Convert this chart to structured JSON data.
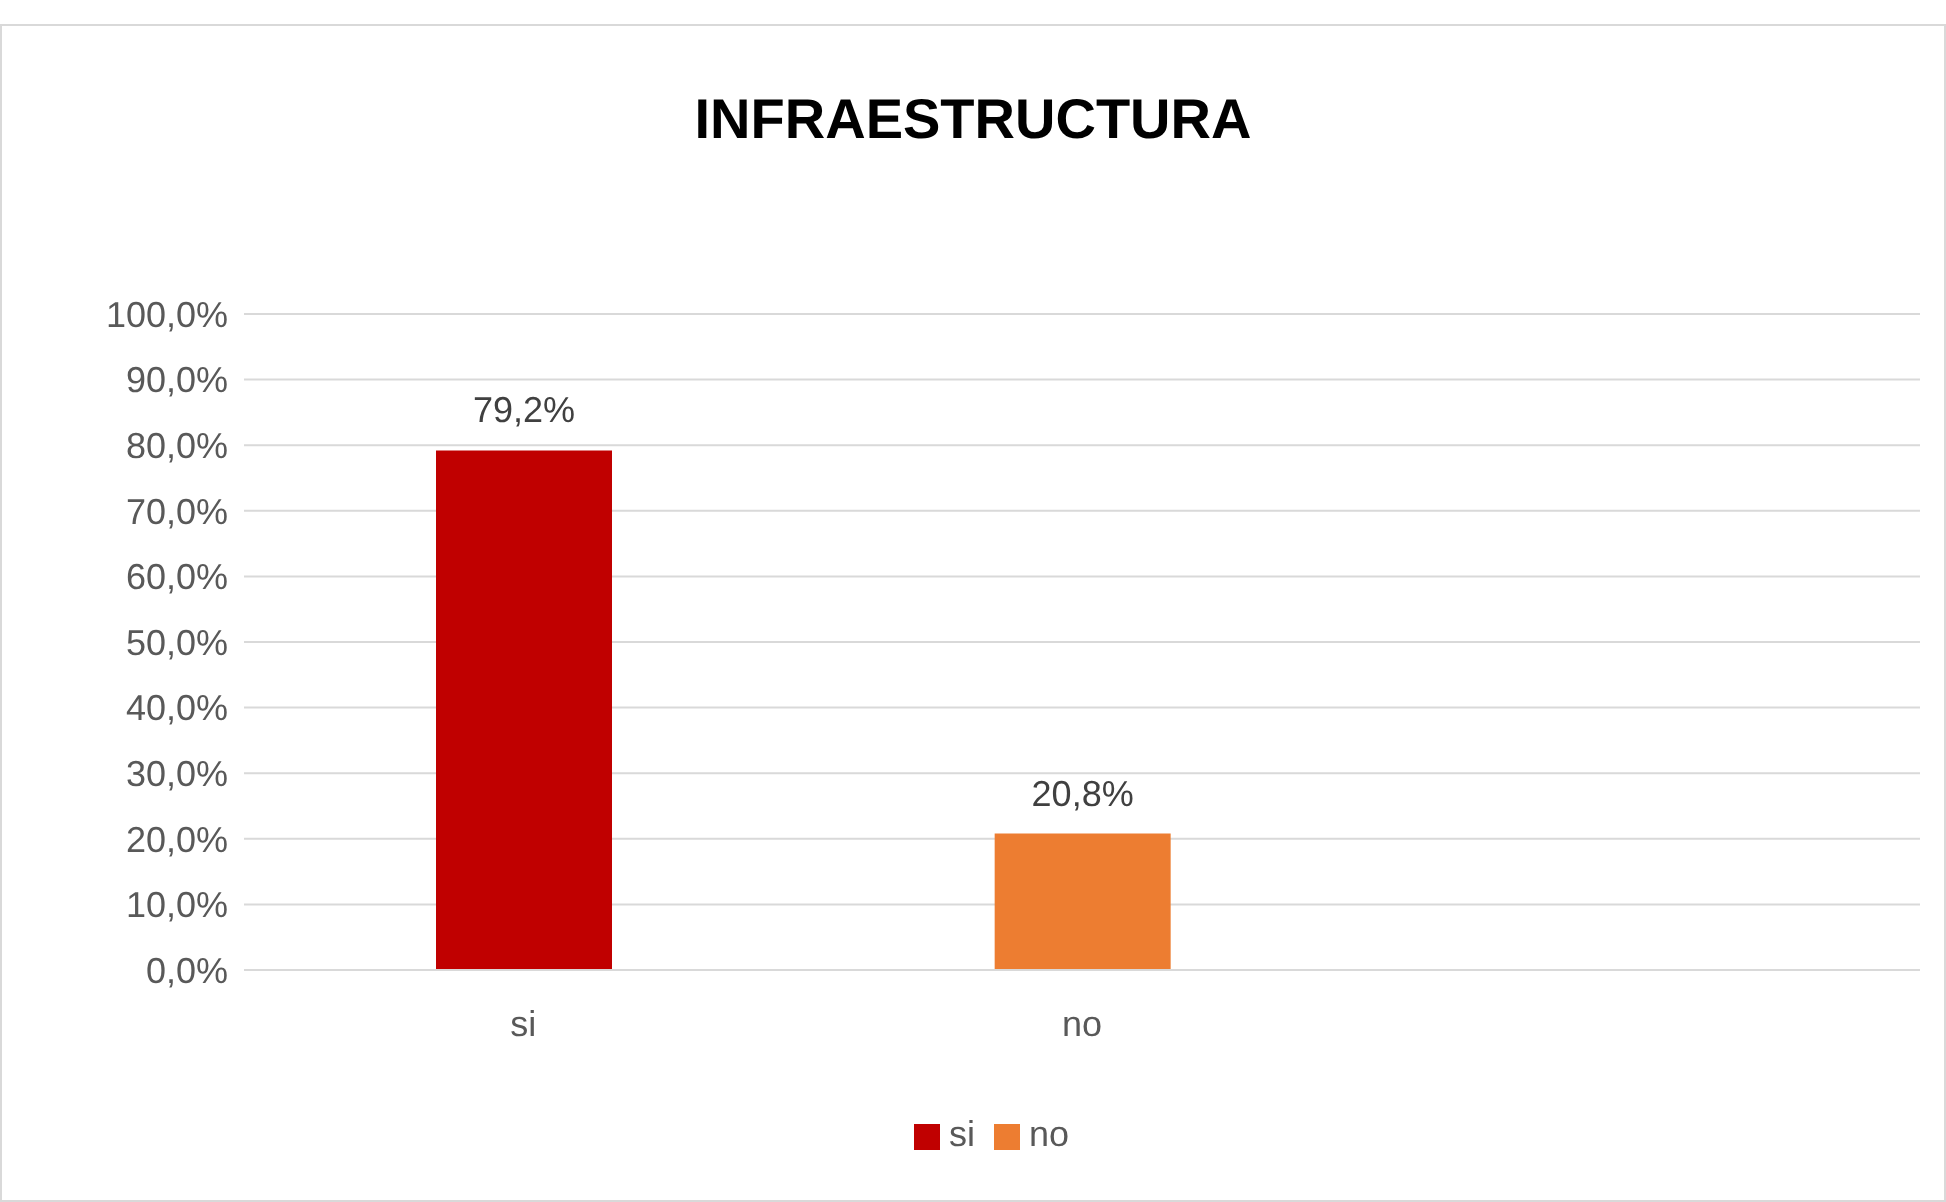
{
  "chart_data": {
    "type": "bar",
    "title": "INFRAESTRUCTURA",
    "categories": [
      "si",
      "no",
      null
    ],
    "series": [
      {
        "name": "si",
        "color": "#c00000",
        "values": [
          79.2,
          null,
          null
        ],
        "value_labels": [
          "79,2%",
          null,
          null
        ]
      },
      {
        "name": "no",
        "color": "#ed7d31",
        "values": [
          null,
          20.8,
          null
        ],
        "value_labels": [
          null,
          "20,8%",
          null
        ]
      }
    ],
    "ylim": [
      0,
      100
    ],
    "yticks": [
      {
        "value": 0,
        "label": "0,0%"
      },
      {
        "value": 10,
        "label": "10,0%"
      },
      {
        "value": 20,
        "label": "20,0%"
      },
      {
        "value": 30,
        "label": "30,0%"
      },
      {
        "value": 40,
        "label": "40,0%"
      },
      {
        "value": 50,
        "label": "50,0%"
      },
      {
        "value": 60,
        "label": "60,0%"
      },
      {
        "value": 70,
        "label": "70,0%"
      },
      {
        "value": 80,
        "label": "80,0%"
      },
      {
        "value": 90,
        "label": "90,0%"
      },
      {
        "value": 100,
        "label": "100,0%"
      }
    ],
    "grid": "y",
    "legend": "bottom"
  }
}
